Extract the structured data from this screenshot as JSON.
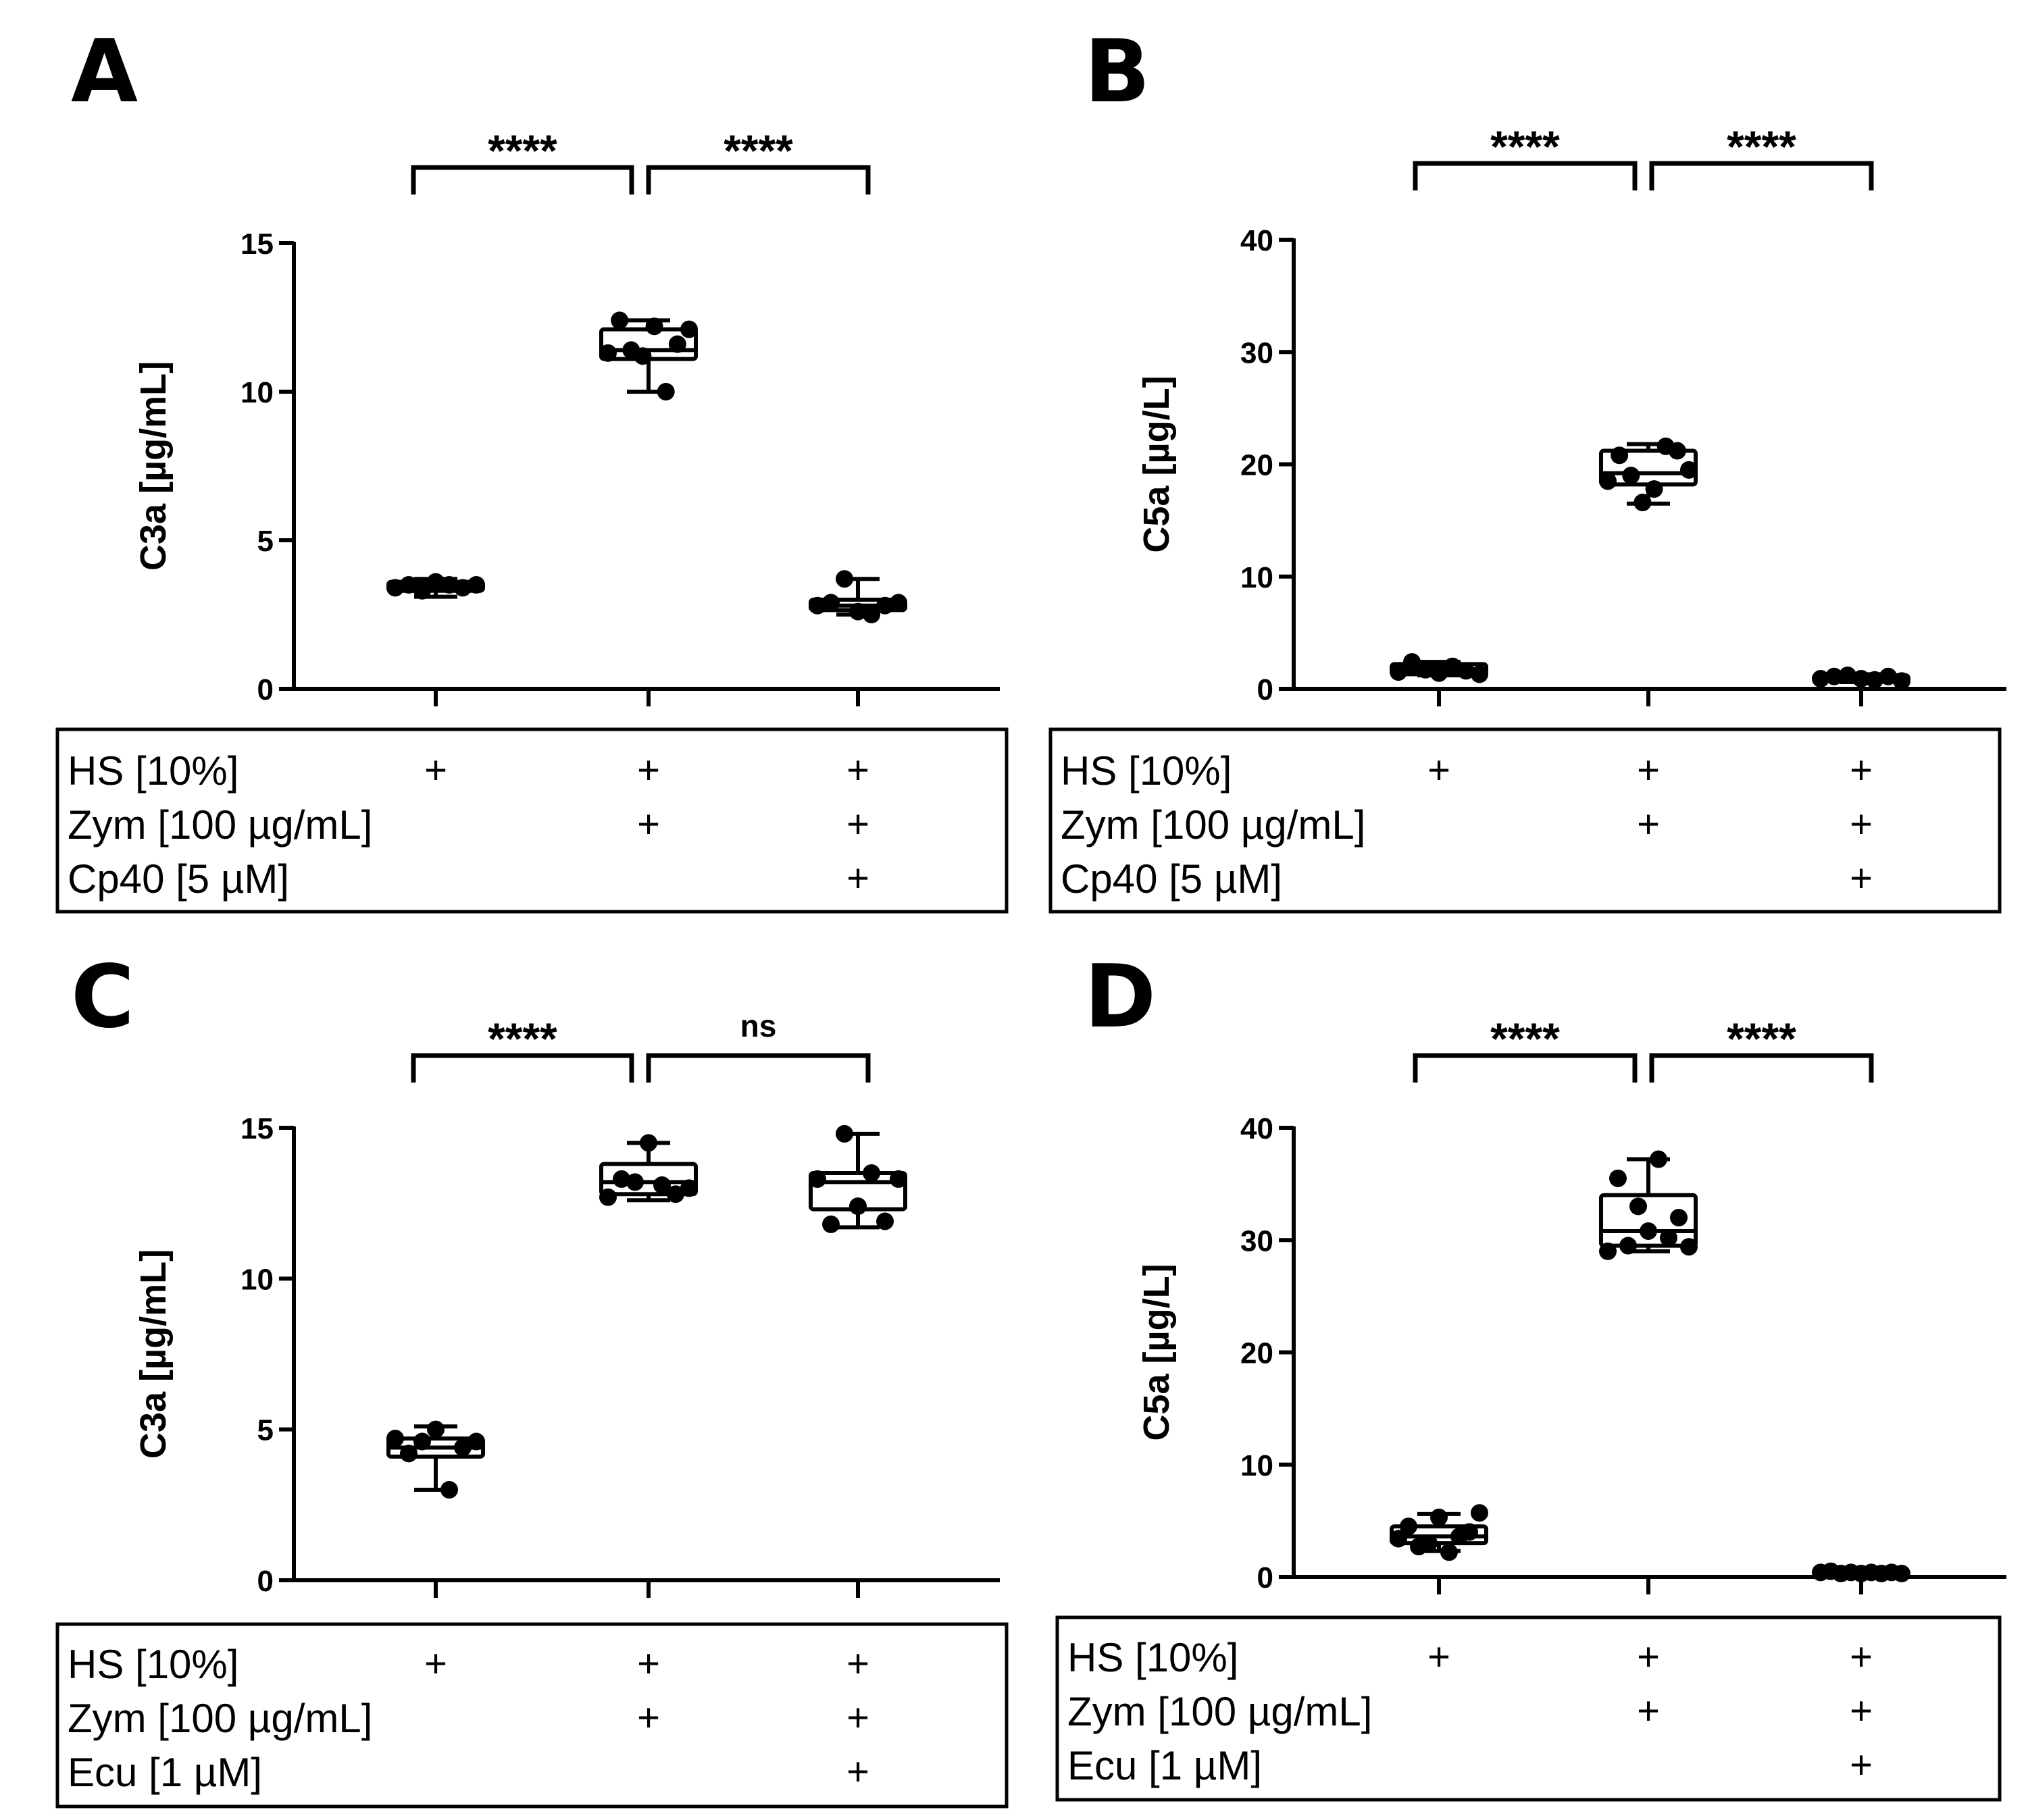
{
  "chart_data": [
    {
      "type": "box",
      "panel": "A",
      "ylabel": "C3a [µg/mL]",
      "ylim": [
        0,
        15
      ],
      "yticks": [
        "0",
        "5",
        "10",
        "15"
      ],
      "ytick_values": [
        0,
        5,
        10,
        15
      ],
      "groups": [
        {
          "min": 3.1,
          "q1": 3.3,
          "median": 3.45,
          "q3": 3.6,
          "max": 3.7,
          "points": [
            3.4,
            3.5,
            3.3,
            3.6,
            3.5,
            3.4,
            3.5
          ]
        },
        {
          "min": 10.0,
          "q1": 11.1,
          "median": 11.4,
          "q3": 12.1,
          "max": 12.4,
          "points": [
            11.3,
            12.4,
            11.4,
            11.2,
            12.2,
            10.0,
            11.6,
            12.1
          ]
        },
        {
          "min": 2.5,
          "q1": 2.65,
          "median": 2.8,
          "q3": 3.0,
          "max": 3.7,
          "points": [
            2.8,
            2.9,
            3.7,
            2.6,
            2.5,
            2.8,
            2.9
          ]
        }
      ],
      "comparisons": [
        "****",
        "****"
      ],
      "table": {
        "rows": [
          {
            "label": "HS [10%]",
            "marks": [
              "+",
              "+",
              "+"
            ]
          },
          {
            "label": "Zym [100 µg/mL]",
            "marks": [
              "",
              "+",
              "+"
            ]
          },
          {
            "label": "Cp40 [5 µM]",
            "marks": [
              "",
              "",
              "+"
            ]
          }
        ]
      }
    },
    {
      "type": "box",
      "panel": "B",
      "ylabel": "C5a [µg/L]",
      "ylim": [
        0,
        40
      ],
      "yticks": [
        "0",
        "10",
        "20",
        "30",
        "40"
      ],
      "ytick_values": [
        0,
        10,
        20,
        30,
        40
      ],
      "groups": [
        {
          "min": 1.2,
          "q1": 1.3,
          "median": 1.6,
          "q3": 2.2,
          "max": 2.4,
          "points": [
            1.5,
            2.4,
            1.7,
            1.4,
            2.0,
            1.6,
            1.3
          ]
        },
        {
          "min": 16.5,
          "q1": 18.2,
          "median": 19.2,
          "q3": 21.2,
          "max": 21.8,
          "points": [
            18.5,
            20.8,
            19.0,
            16.6,
            17.8,
            21.6,
            21.2,
            19.5
          ]
        },
        {
          "min": 0.6,
          "q1": 0.7,
          "median": 0.9,
          "q3": 1.2,
          "max": 1.3,
          "points": [
            0.9,
            1.1,
            1.2,
            0.9,
            0.8,
            1.1,
            0.7
          ]
        }
      ],
      "comparisons": [
        "****",
        "****"
      ],
      "table": {
        "rows": [
          {
            "label": "HS [10%]",
            "marks": [
              "+",
              "+",
              "+"
            ]
          },
          {
            "label": "Zym [100 µg/mL]",
            "marks": [
              "",
              "+",
              "+"
            ]
          },
          {
            "label": "Cp40 [5 µM]",
            "marks": [
              "",
              "",
              "+"
            ]
          }
        ]
      }
    },
    {
      "type": "box",
      "panel": "C",
      "ylabel": "C3a [µg/mL]",
      "ylim": [
        0,
        15
      ],
      "yticks": [
        "0",
        "5",
        "10",
        "15"
      ],
      "ytick_values": [
        0,
        5,
        10,
        15
      ],
      "groups": [
        {
          "min": 3.0,
          "q1": 4.1,
          "median": 4.4,
          "q3": 4.7,
          "max": 5.1,
          "points": [
            4.7,
            4.2,
            4.6,
            5.0,
            3.0,
            4.4,
            4.6
          ]
        },
        {
          "min": 12.6,
          "q1": 12.8,
          "median": 13.2,
          "q3": 13.8,
          "max": 14.5,
          "points": [
            12.7,
            13.3,
            13.2,
            14.5,
            13.1,
            12.8,
            13.0
          ]
        },
        {
          "min": 11.7,
          "q1": 12.3,
          "median": 13.2,
          "q3": 13.5,
          "max": 14.8,
          "points": [
            13.3,
            11.8,
            14.8,
            12.4,
            13.5,
            11.9,
            13.3
          ]
        }
      ],
      "comparisons": [
        "****",
        "ns"
      ],
      "table": {
        "rows": [
          {
            "label": "HS [10%]",
            "marks": [
              "+",
              "+",
              "+"
            ]
          },
          {
            "label": "Zym [100 µg/mL]",
            "marks": [
              "",
              "+",
              "+"
            ]
          },
          {
            "label": "Ecu [1 µM]",
            "marks": [
              "",
              "",
              "+"
            ]
          }
        ]
      }
    },
    {
      "type": "box",
      "panel": "D",
      "ylabel": "C5a [µg/L]",
      "ylim": [
        0,
        40
      ],
      "yticks": [
        "0",
        "10",
        "20",
        "30",
        "40"
      ],
      "ytick_values": [
        0,
        10,
        20,
        30,
        40
      ],
      "groups": [
        {
          "min": 2.3,
          "q1": 3.0,
          "median": 3.6,
          "q3": 4.5,
          "max": 5.6,
          "points": [
            3.4,
            4.5,
            2.7,
            3.0,
            5.3,
            2.2,
            3.6,
            4.0,
            5.7
          ]
        },
        {
          "min": 29.0,
          "q1": 29.5,
          "median": 30.8,
          "q3": 34.0,
          "max": 37.2,
          "points": [
            29.0,
            35.5,
            29.5,
            33.0,
            30.8,
            37.2,
            30.2,
            32.0,
            29.4
          ]
        },
        {
          "min": 0.2,
          "q1": 0.25,
          "median": 0.35,
          "q3": 0.5,
          "max": 0.6,
          "points": [
            0.4,
            0.5,
            0.3,
            0.4,
            0.3,
            0.4,
            0.3,
            0.4,
            0.3
          ]
        }
      ],
      "comparisons": [
        "****",
        "****"
      ],
      "table": {
        "rows": [
          {
            "label": "HS [10%]",
            "marks": [
              "+",
              "+",
              "+"
            ]
          },
          {
            "label": "Zym [100 µg/mL]",
            "marks": [
              "",
              "+",
              "+"
            ]
          },
          {
            "label": "Ecu [1 µM]",
            "marks": [
              "",
              "",
              "+"
            ]
          }
        ]
      }
    }
  ]
}
